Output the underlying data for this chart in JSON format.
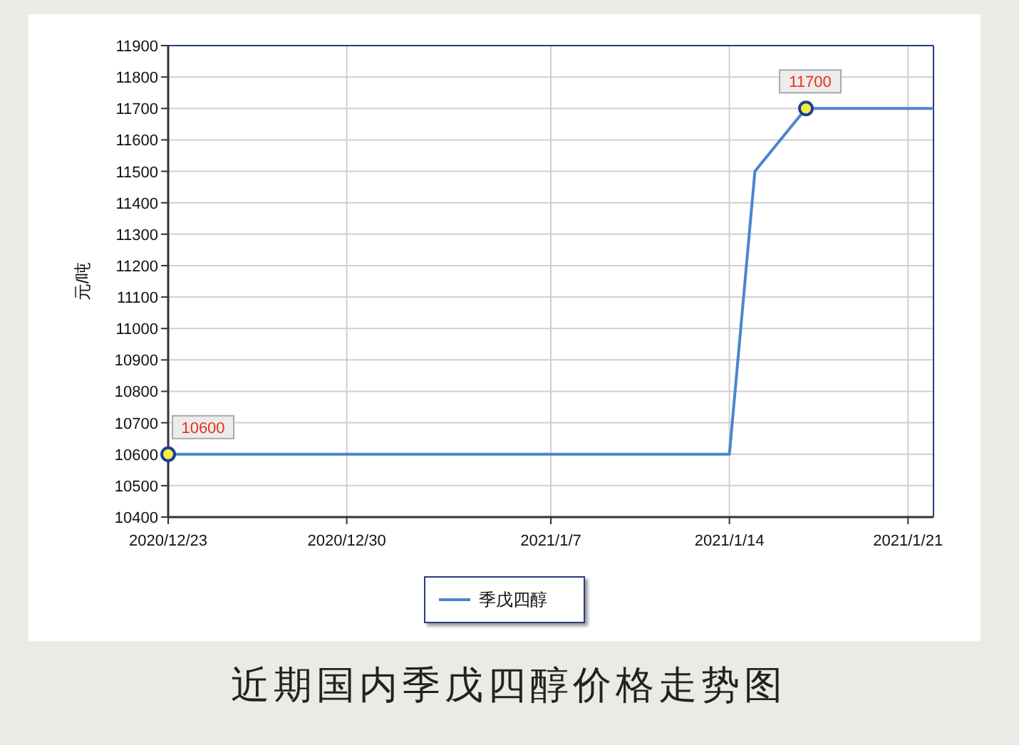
{
  "chart_data": {
    "type": "line",
    "title": "近期国内季戊四醇价格走势图",
    "ylabel": "元/吨",
    "x": [
      "2020-12-23",
      "2021-01-14",
      "2021-01-15",
      "2021-01-17",
      "2021-01-22"
    ],
    "series": [
      {
        "name": "季戊四醇",
        "color": "#4a86d0",
        "values": [
          10600,
          10600,
          11500,
          11700,
          11700
        ],
        "value_labels": [
          "10600",
          null,
          null,
          "11700",
          null
        ]
      }
    ],
    "xlim": [
      "2020-12-23",
      "2021-01-22"
    ],
    "xticks": [
      {
        "value": "2020-12-23",
        "label": "2020/12/23"
      },
      {
        "value": "2020-12-30",
        "label": "2020/12/30"
      },
      {
        "value": "2021-01-07",
        "label": "2021/1/7"
      },
      {
        "value": "2021-01-14",
        "label": "2021/1/14"
      },
      {
        "value": "2021-01-21",
        "label": "2021/1/21"
      }
    ],
    "ylim": [
      10400,
      11900
    ],
    "yticks": [
      10400,
      10500,
      10600,
      10700,
      10800,
      10900,
      11000,
      11100,
      11200,
      11300,
      11400,
      11500,
      11600,
      11700,
      11800,
      11900
    ],
    "grid": true,
    "legend": "bottom",
    "line_style": "solid"
  }
}
